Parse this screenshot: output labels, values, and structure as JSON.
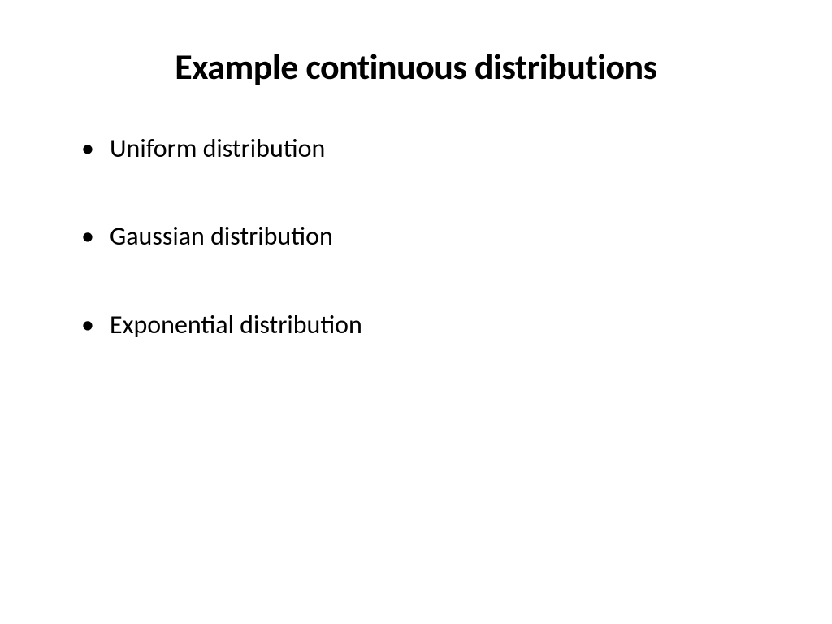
{
  "slide": {
    "title": "Example continuous distributions",
    "title_fontsize": 44,
    "title_fontweight": 700,
    "title_color": "#000000",
    "background_color": "#ffffff",
    "bullets": [
      {
        "text": "Uniform distribution"
      },
      {
        "text": "Gaussian distribution"
      },
      {
        "text": "Exponential distribution"
      }
    ],
    "bullet_fontsize": 32,
    "bullet_color": "#000000",
    "bullet_spacing": 70
  }
}
